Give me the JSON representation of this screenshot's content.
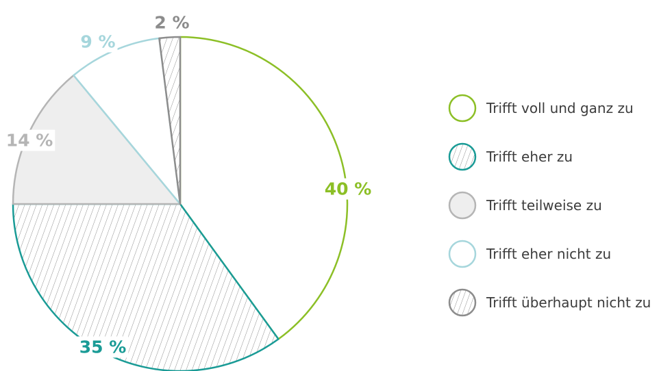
{
  "chart_data": {
    "type": "pie",
    "title": "",
    "start_angle": "12 o'clock, clockwise",
    "legend_position": "right",
    "series": [
      {
        "name": "Trifft voll und ganz zu",
        "value": 40,
        "label": "40 %",
        "stroke": "#8cbf26",
        "fill": "#ffffff",
        "label_color": "#8cbf26",
        "pattern": "none"
      },
      {
        "name": "Trifft eher zu",
        "value": 35,
        "label": "35 %",
        "stroke": "#1a9b96",
        "fill": "#ffffff",
        "label_color": "#1a9b96",
        "pattern": "hatch"
      },
      {
        "name": "Trifft teilweise zu",
        "value": 14,
        "label": "14 %",
        "stroke": "#b5b5b5",
        "fill": "#eeeeee",
        "label_color": "#b5b5b5",
        "pattern": "none"
      },
      {
        "name": "Trifft eher nicht zu",
        "value": 9,
        "label": "9 %",
        "stroke": "#a6d6dc",
        "fill": "#ffffff",
        "label_color": "#a6d6dc",
        "pattern": "none"
      },
      {
        "name": "Trifft überhaupt nicht zu",
        "value": 2,
        "label": "2 %",
        "stroke": "#8c8c8c",
        "fill": "#ffffff",
        "label_color": "#8c8c8c",
        "pattern": "hatch"
      }
    ]
  }
}
